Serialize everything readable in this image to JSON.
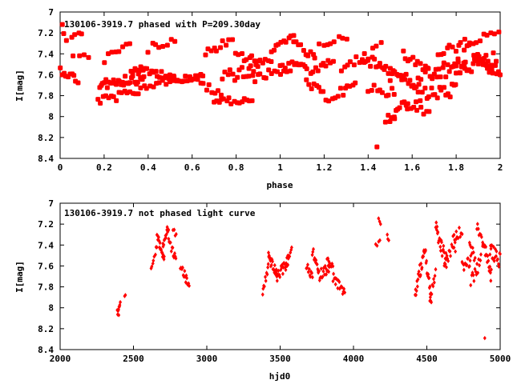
{
  "chart_data": [
    {
      "type": "scatter",
      "title": "130106-3919.7 phased with P=209.30day",
      "xlabel": "phase",
      "ylabel": "I[mag]",
      "xlim": [
        0,
        2
      ],
      "ylim": [
        8.4,
        7.0
      ],
      "y_inverted": true,
      "x_ticks": [
        "0",
        "0.2",
        "0.4",
        "0.6",
        "0.8",
        "1",
        "1.2",
        "1.4",
        "1.6",
        "1.8",
        "2"
      ],
      "y_ticks": [
        "7",
        "7.2",
        "7.4",
        "7.6",
        "7.8",
        "8",
        "8.2",
        "8.4"
      ],
      "x_tick_values": [
        0,
        0.2,
        0.4,
        0.6,
        0.8,
        1.0,
        1.2,
        1.4,
        1.6,
        1.8,
        2.0
      ],
      "y_tick_values": [
        7.0,
        7.2,
        7.4,
        7.6,
        7.8,
        8.0,
        8.2,
        8.4
      ],
      "marker_color": "#ff0000",
      "marker": "star",
      "segments": [
        {
          "x0": 0.0,
          "x1": 0.08,
          "y0": 7.55,
          "y1": 7.65,
          "n": 10,
          "jitter": 0.04
        },
        {
          "x0": 0.0,
          "x1": 0.03,
          "y0": 7.15,
          "y1": 7.28,
          "n": 3,
          "jitter": 0.03
        },
        {
          "x0": 0.05,
          "x1": 0.1,
          "y0": 7.22,
          "y1": 7.22,
          "n": 4,
          "jitter": 0.03
        },
        {
          "x0": 0.06,
          "x1": 0.13,
          "y0": 7.42,
          "y1": 7.42,
          "n": 4,
          "jitter": 0.02
        },
        {
          "x0": 0.17,
          "x1": 0.33,
          "y0": 7.85,
          "y1": 7.78,
          "n": 14,
          "jitter": 0.04
        },
        {
          "x0": 0.18,
          "x1": 0.38,
          "y0": 7.68,
          "y1": 7.62,
          "n": 30,
          "jitter": 0.06
        },
        {
          "x0": 0.2,
          "x1": 0.32,
          "y0": 7.45,
          "y1": 7.3,
          "n": 8,
          "jitter": 0.04
        },
        {
          "x0": 0.32,
          "x1": 0.5,
          "y0": 7.55,
          "y1": 7.6,
          "n": 20,
          "jitter": 0.04
        },
        {
          "x0": 0.34,
          "x1": 0.52,
          "y0": 7.78,
          "y1": 7.62,
          "n": 14,
          "jitter": 0.04
        },
        {
          "x0": 0.4,
          "x1": 0.52,
          "y0": 7.35,
          "y1": 7.25,
          "n": 8,
          "jitter": 0.04
        },
        {
          "x0": 0.5,
          "x1": 0.65,
          "y0": 7.65,
          "y1": 7.62,
          "n": 18,
          "jitter": 0.03
        },
        {
          "x0": 0.64,
          "x1": 0.73,
          "y0": 7.68,
          "y1": 7.8,
          "n": 8,
          "jitter": 0.04
        },
        {
          "x0": 0.66,
          "x1": 0.78,
          "y0": 7.4,
          "y1": 7.25,
          "n": 10,
          "jitter": 0.04
        },
        {
          "x0": 0.7,
          "x1": 0.87,
          "y0": 7.85,
          "y1": 7.85,
          "n": 16,
          "jitter": 0.03
        },
        {
          "x0": 0.74,
          "x1": 0.9,
          "y0": 7.62,
          "y1": 7.55,
          "n": 16,
          "jitter": 0.06
        },
        {
          "x0": 0.8,
          "x1": 0.96,
          "y0": 7.42,
          "y1": 7.48,
          "n": 14,
          "jitter": 0.04
        },
        {
          "x0": 0.86,
          "x1": 1.0,
          "y0": 7.65,
          "y1": 7.55,
          "n": 12,
          "jitter": 0.04
        },
        {
          "x0": 0.96,
          "x1": 1.06,
          "y0": 7.35,
          "y1": 7.22,
          "n": 10,
          "jitter": 0.04
        },
        {
          "x0": 1.0,
          "x1": 1.12,
          "y0": 7.55,
          "y1": 7.5,
          "n": 16,
          "jitter": 0.05
        },
        {
          "x0": 1.06,
          "x1": 1.16,
          "y0": 7.3,
          "y1": 7.45,
          "n": 10,
          "jitter": 0.04
        },
        {
          "x0": 1.12,
          "x1": 1.22,
          "y0": 7.68,
          "y1": 7.82,
          "n": 10,
          "jitter": 0.04
        },
        {
          "x0": 1.14,
          "x1": 1.24,
          "y0": 7.55,
          "y1": 7.5,
          "n": 10,
          "jitter": 0.05
        },
        {
          "x0": 1.18,
          "x1": 1.3,
          "y0": 7.3,
          "y1": 7.25,
          "n": 8,
          "jitter": 0.04
        },
        {
          "x0": 1.24,
          "x1": 1.34,
          "y0": 7.8,
          "y1": 7.7,
          "n": 10,
          "jitter": 0.04
        },
        {
          "x0": 1.28,
          "x1": 1.4,
          "y0": 7.55,
          "y1": 7.4,
          "n": 10,
          "jitter": 0.05
        },
        {
          "x0": 1.38,
          "x1": 1.5,
          "y0": 7.45,
          "y1": 7.55,
          "n": 14,
          "jitter": 0.05
        },
        {
          "x0": 1.4,
          "x1": 1.52,
          "y0": 7.72,
          "y1": 7.78,
          "n": 10,
          "jitter": 0.05
        },
        {
          "x0": 1.42,
          "x1": 1.46,
          "y0": 7.35,
          "y1": 7.3,
          "n": 3,
          "jitter": 0.03
        },
        {
          "x0": 1.48,
          "x1": 1.58,
          "y0": 8.05,
          "y1": 7.85,
          "n": 12,
          "jitter": 0.05
        },
        {
          "x0": 1.5,
          "x1": 1.64,
          "y0": 7.6,
          "y1": 7.7,
          "n": 20,
          "jitter": 0.06
        },
        {
          "x0": 1.56,
          "x1": 1.66,
          "y0": 7.4,
          "y1": 7.55,
          "n": 10,
          "jitter": 0.05
        },
        {
          "x0": 1.58,
          "x1": 1.68,
          "y0": 7.92,
          "y1": 7.95,
          "n": 8,
          "jitter": 0.04
        },
        {
          "x0": 1.62,
          "x1": 1.8,
          "y0": 7.8,
          "y1": 7.75,
          "n": 20,
          "jitter": 0.07
        },
        {
          "x0": 1.66,
          "x1": 1.84,
          "y0": 7.62,
          "y1": 7.5,
          "n": 24,
          "jitter": 0.08
        },
        {
          "x0": 1.72,
          "x1": 1.86,
          "y0": 7.4,
          "y1": 7.3,
          "n": 12,
          "jitter": 0.05
        },
        {
          "x0": 1.8,
          "x1": 1.98,
          "y0": 7.55,
          "y1": 7.45,
          "n": 22,
          "jitter": 0.07
        },
        {
          "x0": 1.84,
          "x1": 1.99,
          "y0": 7.28,
          "y1": 7.22,
          "n": 10,
          "jitter": 0.04
        },
        {
          "x0": 1.88,
          "x1": 2.0,
          "y0": 7.4,
          "y1": 7.6,
          "n": 16,
          "jitter": 0.06
        }
      ],
      "points": [
        {
          "x": 1.44,
          "y": 8.29
        },
        {
          "x": 0.01,
          "y": 7.12
        },
        {
          "x": 1.52,
          "y": 8.02
        }
      ]
    },
    {
      "type": "scatter",
      "title": "130106-3919.7 not phased light curve",
      "xlabel": "hjd0",
      "ylabel": "I[mag]",
      "xlim": [
        2000,
        5000
      ],
      "ylim": [
        8.4,
        7.0
      ],
      "y_inverted": true,
      "x_ticks": [
        "2000",
        "2500",
        "3000",
        "3500",
        "4000",
        "4500",
        "5000"
      ],
      "y_ticks": [
        "7",
        "7.2",
        "7.4",
        "7.6",
        "7.8",
        "8",
        "8.2",
        "8.4"
      ],
      "x_tick_values": [
        2000,
        2500,
        3000,
        3500,
        4000,
        4500,
        5000
      ],
      "y_tick_values": [
        7.0,
        7.2,
        7.4,
        7.6,
        7.8,
        8.0,
        8.2,
        8.4
      ],
      "marker_color": "#ff0000",
      "marker": "diamond",
      "segments": [
        {
          "x0": 2390,
          "x1": 2410,
          "y0": 8.05,
          "y1": 7.95,
          "n": 8,
          "jitter": 0.03
        },
        {
          "x0": 2440,
          "x1": 2445,
          "y0": 7.88,
          "y1": 7.88,
          "n": 2,
          "jitter": 0.01
        },
        {
          "x0": 2620,
          "x1": 2660,
          "y0": 7.65,
          "y1": 7.4,
          "n": 8,
          "jitter": 0.03
        },
        {
          "x0": 2660,
          "x1": 2710,
          "y0": 7.3,
          "y1": 7.55,
          "n": 18,
          "jitter": 0.04
        },
        {
          "x0": 2700,
          "x1": 2740,
          "y0": 7.4,
          "y1": 7.22,
          "n": 14,
          "jitter": 0.04
        },
        {
          "x0": 2740,
          "x1": 2790,
          "y0": 7.35,
          "y1": 7.55,
          "n": 12,
          "jitter": 0.04
        },
        {
          "x0": 2770,
          "x1": 2790,
          "y0": 7.25,
          "y1": 7.3,
          "n": 4,
          "jitter": 0.03
        },
        {
          "x0": 2820,
          "x1": 2880,
          "y0": 7.6,
          "y1": 7.8,
          "n": 16,
          "jitter": 0.05
        },
        {
          "x0": 3380,
          "x1": 3420,
          "y0": 7.85,
          "y1": 7.6,
          "n": 10,
          "jitter": 0.04
        },
        {
          "x0": 3420,
          "x1": 3480,
          "y0": 7.5,
          "y1": 7.7,
          "n": 22,
          "jitter": 0.05
        },
        {
          "x0": 3480,
          "x1": 3560,
          "y0": 7.7,
          "y1": 7.55,
          "n": 22,
          "jitter": 0.05
        },
        {
          "x0": 3540,
          "x1": 3580,
          "y0": 7.55,
          "y1": 7.45,
          "n": 8,
          "jitter": 0.03
        },
        {
          "x0": 3680,
          "x1": 3720,
          "y0": 7.6,
          "y1": 7.72,
          "n": 10,
          "jitter": 0.04
        },
        {
          "x0": 3720,
          "x1": 3760,
          "y0": 7.45,
          "y1": 7.65,
          "n": 12,
          "jitter": 0.05
        },
        {
          "x0": 3760,
          "x1": 3840,
          "y0": 7.7,
          "y1": 7.6,
          "n": 20,
          "jitter": 0.05
        },
        {
          "x0": 3820,
          "x1": 3860,
          "y0": 7.55,
          "y1": 7.62,
          "n": 8,
          "jitter": 0.04
        },
        {
          "x0": 3860,
          "x1": 3940,
          "y0": 7.7,
          "y1": 7.88,
          "n": 18,
          "jitter": 0.05
        },
        {
          "x0": 4150,
          "x1": 4180,
          "y0": 7.42,
          "y1": 7.35,
          "n": 4,
          "jitter": 0.03
        },
        {
          "x0": 4170,
          "x1": 4185,
          "y0": 7.13,
          "y1": 7.2,
          "n": 3,
          "jitter": 0.02
        },
        {
          "x0": 4230,
          "x1": 4240,
          "y0": 7.32,
          "y1": 7.35,
          "n": 3,
          "jitter": 0.02
        },
        {
          "x0": 4420,
          "x1": 4480,
          "y0": 7.85,
          "y1": 7.5,
          "n": 20,
          "jitter": 0.08
        },
        {
          "x0": 4480,
          "x1": 4530,
          "y0": 7.4,
          "y1": 7.9,
          "n": 18,
          "jitter": 0.08
        },
        {
          "x0": 4520,
          "x1": 4560,
          "y0": 7.95,
          "y1": 7.65,
          "n": 10,
          "jitter": 0.05
        },
        {
          "x0": 4560,
          "x1": 4640,
          "y0": 7.25,
          "y1": 7.6,
          "n": 26,
          "jitter": 0.08
        },
        {
          "x0": 4620,
          "x1": 4700,
          "y0": 7.55,
          "y1": 7.4,
          "n": 16,
          "jitter": 0.07
        },
        {
          "x0": 4680,
          "x1": 4740,
          "y0": 7.35,
          "y1": 7.25,
          "n": 10,
          "jitter": 0.05
        },
        {
          "x0": 4740,
          "x1": 4800,
          "y0": 7.6,
          "y1": 7.55,
          "n": 14,
          "jitter": 0.05
        },
        {
          "x0": 4790,
          "x1": 4830,
          "y0": 7.35,
          "y1": 7.55,
          "n": 8,
          "jitter": 0.05
        },
        {
          "x0": 4800,
          "x1": 4870,
          "y0": 7.75,
          "y1": 7.55,
          "n": 14,
          "jitter": 0.06
        },
        {
          "x0": 4840,
          "x1": 4880,
          "y0": 7.22,
          "y1": 7.35,
          "n": 8,
          "jitter": 0.04
        },
        {
          "x0": 4880,
          "x1": 4940,
          "y0": 7.35,
          "y1": 7.7,
          "n": 18,
          "jitter": 0.07
        },
        {
          "x0": 4930,
          "x1": 5000,
          "y0": 7.45,
          "y1": 7.55,
          "n": 18,
          "jitter": 0.07
        }
      ],
      "points": [
        {
          "x": 4895,
          "y": 8.29
        },
        {
          "x": 2400,
          "y": 8.07
        }
      ]
    }
  ]
}
